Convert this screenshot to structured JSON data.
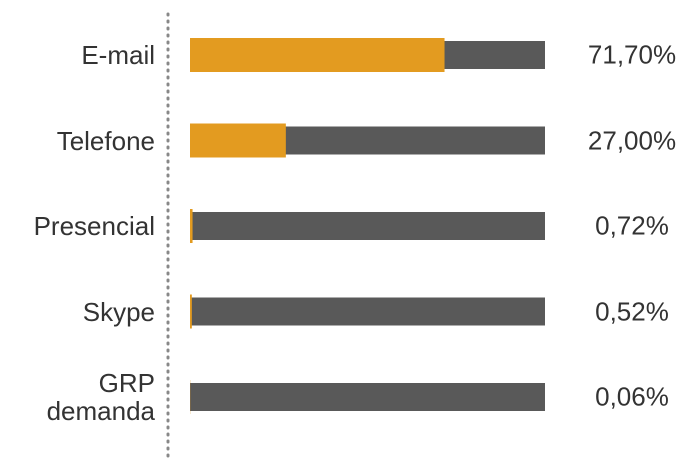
{
  "chart_data": {
    "type": "bar",
    "orientation": "horizontal",
    "categories": [
      "E-mail",
      "Telefone",
      "Presencial",
      "Skype",
      "GRP demanda"
    ],
    "values": [
      71.7,
      27.0,
      0.72,
      0.52,
      0.06
    ],
    "value_labels": [
      "71,70%",
      "27,00%",
      "0,72%",
      "0,52%",
      "0,06%"
    ],
    "color": "#e39b20",
    "track_color": "#595959",
    "xlim": [
      0,
      100
    ]
  }
}
